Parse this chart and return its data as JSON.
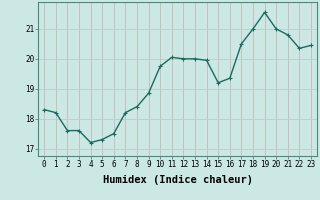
{
  "xlabel": "Humidex (Indice chaleur)",
  "x": [
    0,
    1,
    2,
    3,
    4,
    5,
    6,
    7,
    8,
    9,
    10,
    11,
    12,
    13,
    14,
    15,
    16,
    17,
    18,
    19,
    20,
    21,
    22,
    23
  ],
  "y": [
    18.3,
    18.2,
    17.6,
    17.6,
    17.2,
    17.3,
    17.5,
    18.2,
    18.4,
    18.85,
    19.75,
    20.05,
    20.0,
    20.0,
    19.95,
    19.2,
    19.35,
    20.5,
    21.0,
    21.55,
    21.0,
    20.8,
    20.35,
    20.45
  ],
  "line_color": "#1a6b5e",
  "bg_color": "#cce8e4",
  "grid_color_v": "#c8b8b8",
  "grid_color_h": "#b8ceca",
  "ylim": [
    16.75,
    21.9
  ],
  "yticks": [
    17,
    18,
    19,
    20,
    21
  ],
  "xticks": [
    0,
    1,
    2,
    3,
    4,
    5,
    6,
    7,
    8,
    9,
    10,
    11,
    12,
    13,
    14,
    15,
    16,
    17,
    18,
    19,
    20,
    21,
    22,
    23
  ],
  "marker": "+",
  "markersize": 3,
  "linewidth": 1.0,
  "tick_fontsize": 5.5,
  "xlabel_fontsize": 7.5
}
